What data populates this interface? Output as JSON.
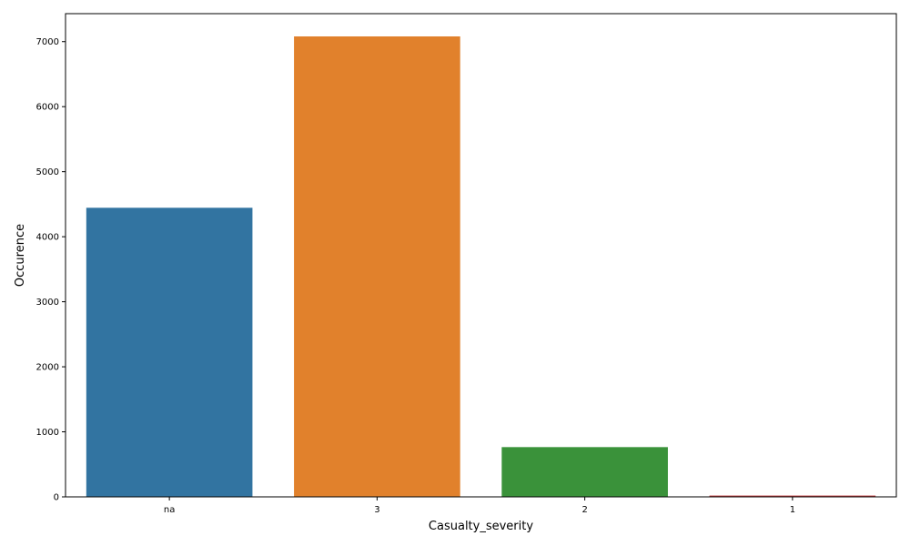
{
  "chart_data": {
    "type": "bar",
    "categories": [
      "na",
      "3",
      "2",
      "1"
    ],
    "values": [
      4445,
      7080,
      765,
      20
    ],
    "xlabel": "Casualty_severity",
    "ylabel": "Occurence",
    "ylim": [
      0,
      7430
    ],
    "yticks": [
      0,
      1000,
      2000,
      3000,
      4000,
      5000,
      6000,
      7000
    ],
    "grid": false,
    "legend": "none",
    "colors": [
      "#3274a1",
      "#e1812c",
      "#3a923a",
      "#c03d3e"
    ]
  }
}
